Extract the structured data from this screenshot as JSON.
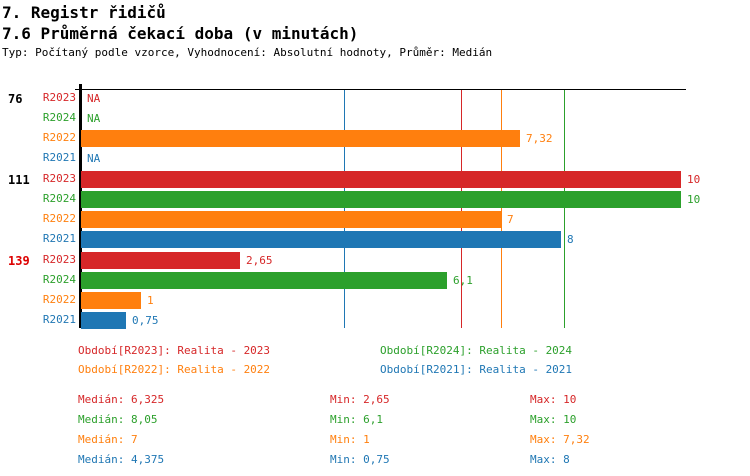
{
  "header": {
    "title1": "7. Registr řidičů",
    "title2": "7.6 Průměrná čekací doba (v minutách)",
    "subtitle": "Typ: Počítaný podle vzorce, Vyhodnocení: Absolutní hodnoty, Průměr: Medián"
  },
  "colors": {
    "R2023": "#d62728",
    "R2024": "#2ca02c",
    "R2022": "#ff7f0e",
    "R2021": "#1f77b4",
    "group_label_default": "#000000",
    "group_label_alert": "#dd0000",
    "axis": "#000000"
  },
  "chart_data": {
    "type": "bar",
    "orientation": "horizontal",
    "title": "7.6 Průměrná čekací doba (v minutách)",
    "axis": {
      "origin_label": "0",
      "min": 0,
      "max": 10,
      "grid": false
    },
    "series_names": [
      "R2023",
      "R2024",
      "R2022",
      "R2021"
    ],
    "groups": [
      {
        "label": "76",
        "label_color": "#000000",
        "bars": [
          {
            "series": "R2023",
            "value": null,
            "display": "NA"
          },
          {
            "series": "R2024",
            "value": null,
            "display": "NA"
          },
          {
            "series": "R2022",
            "value": 7.32,
            "display": "7,32"
          },
          {
            "series": "R2021",
            "value": null,
            "display": "NA"
          }
        ]
      },
      {
        "label": "111",
        "label_color": "#000000",
        "bars": [
          {
            "series": "R2023",
            "value": 10,
            "display": "10"
          },
          {
            "series": "R2024",
            "value": 10,
            "display": "10"
          },
          {
            "series": "R2022",
            "value": 7,
            "display": "7"
          },
          {
            "series": "R2021",
            "value": 8,
            "display": "8"
          }
        ]
      },
      {
        "label": "139",
        "label_color": "#dd0000",
        "bars": [
          {
            "series": "R2023",
            "value": 2.65,
            "display": "2,65"
          },
          {
            "series": "R2024",
            "value": 6.1,
            "display": "6,1"
          },
          {
            "series": "R2022",
            "value": 1,
            "display": "1"
          },
          {
            "series": "R2021",
            "value": 0.75,
            "display": "0,75"
          }
        ]
      }
    ],
    "median_lines": {
      "R2023": 6.325,
      "R2024": 8.05,
      "R2022": 7,
      "R2021": 4.375
    },
    "legend_position": "bottom"
  },
  "legend": [
    {
      "series": "R2023",
      "text": "Období[R2023]: Realita - 2023"
    },
    {
      "series": "R2024",
      "text": "Období[R2024]: Realita - 2024"
    },
    {
      "series": "R2022",
      "text": "Období[R2022]: Realita - 2022"
    },
    {
      "series": "R2021",
      "text": "Období[R2021]: Realita - 2021"
    }
  ],
  "stats": [
    {
      "series": "R2023",
      "median": "Medián: 6,325",
      "min": "Min: 2,65",
      "max": "Max: 10"
    },
    {
      "series": "R2024",
      "median": "Medián: 8,05",
      "min": "Min: 6,1",
      "max": "Max: 10"
    },
    {
      "series": "R2022",
      "median": "Medián: 7",
      "min": "Min: 1",
      "max": "Max: 7,32"
    },
    {
      "series": "R2021",
      "median": "Medián: 4,375",
      "min": "Min: 0,75",
      "max": "Max: 8"
    }
  ]
}
